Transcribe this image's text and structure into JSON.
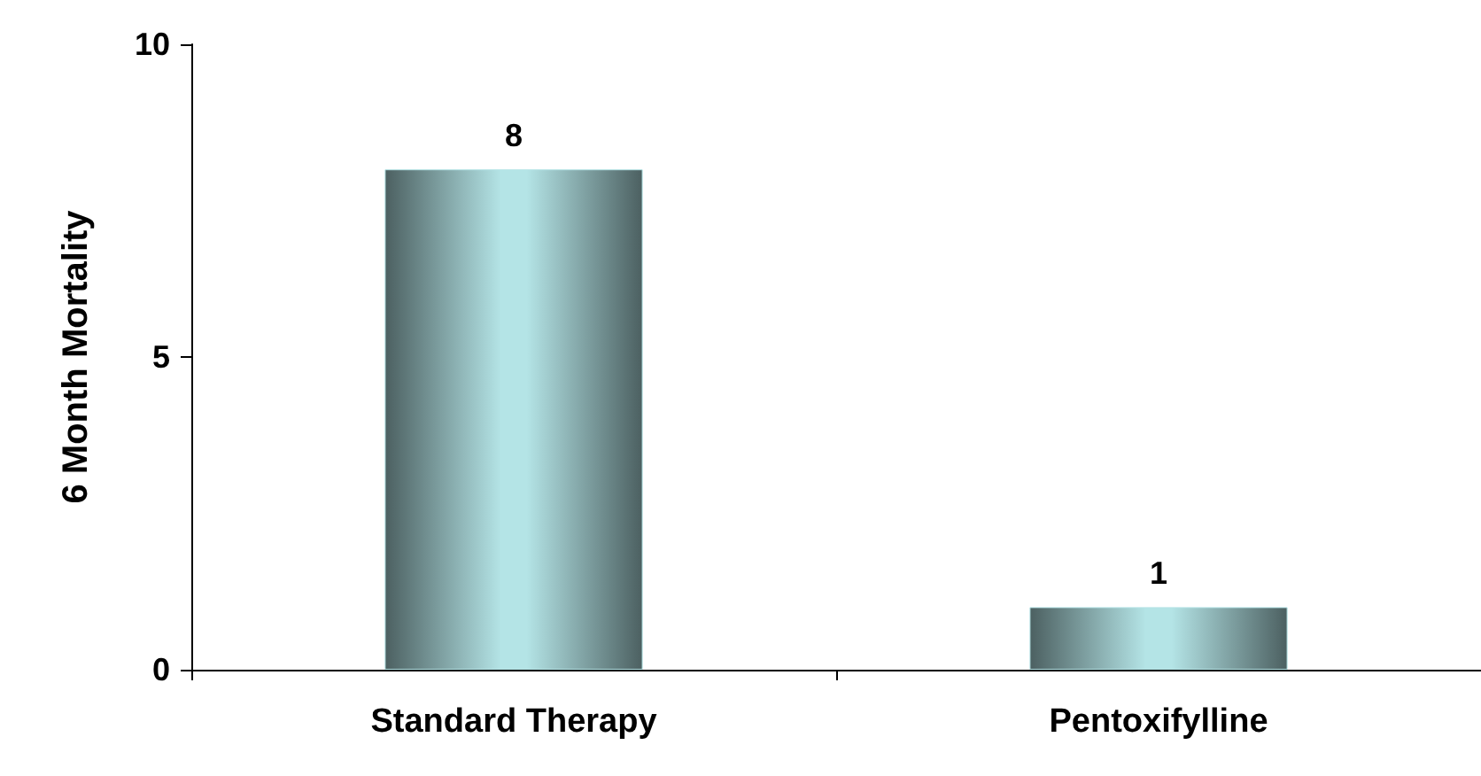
{
  "chart_data": {
    "type": "bar",
    "ylabel": "6 Month Mortality",
    "categories": [
      "Standard Therapy",
      "Pentoxifylline"
    ],
    "values": [
      8,
      1
    ],
    "color": "#b4e4e6",
    "ylim": [
      0,
      10
    ],
    "yticks": [
      0,
      5,
      10
    ],
    "grid": false,
    "data_labels": true
  }
}
